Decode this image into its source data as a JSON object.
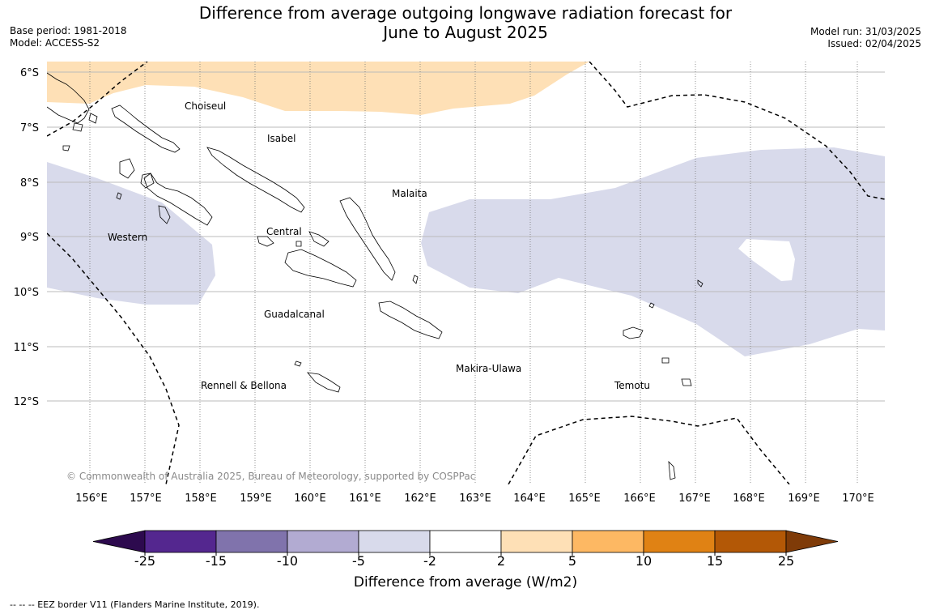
{
  "title_line1": "Difference from average outgoing longwave radiation forecast for",
  "title_line2": "June to August 2025",
  "meta_left": {
    "base_period": "Base period: 1981-2018",
    "model": "Model: ACCESS-S2"
  },
  "meta_right": {
    "model_run": "Model run: 31/03/2025",
    "issued": "Issued: 02/04/2025"
  },
  "map": {
    "lat_labels": [
      "6°S",
      "7°S",
      "8°S",
      "9°S",
      "10°S",
      "11°S",
      "12°S"
    ],
    "lon_labels": [
      "156°E",
      "157°E",
      "158°E",
      "159°E",
      "160°E",
      "161°E",
      "162°E",
      "163°E",
      "164°E",
      "165°E",
      "166°E",
      "167°E",
      "168°E",
      "169°E",
      "170°E"
    ],
    "provinces": [
      "Choiseul",
      "Isabel",
      "Malaita",
      "Western",
      "Central",
      "Guadalcanal",
      "Makira-Ulawa",
      "Rennell & Bellona",
      "Temotu"
    ],
    "copyright": "© Commonwealth of Australia 2025, Bureau of Meteorology, supported by COSPPac"
  },
  "colorbar": {
    "title": "Difference from average (W/m2)",
    "tick_labels": [
      "-25",
      "-15",
      "-10",
      "-5",
      "-2",
      "2",
      "5",
      "10",
      "15",
      "25"
    ],
    "colors": [
      "#2d0a4e",
      "#54278f",
      "#8073ac",
      "#b2abd2",
      "#d8daeb",
      "#ffffff",
      "#fee0b6",
      "#fdb863",
      "#e08214",
      "#b35806",
      "#7f3b08"
    ]
  },
  "eez_note": "--  --  -- EEZ border V11 (Flanders Marine Institute, 2019)."
}
